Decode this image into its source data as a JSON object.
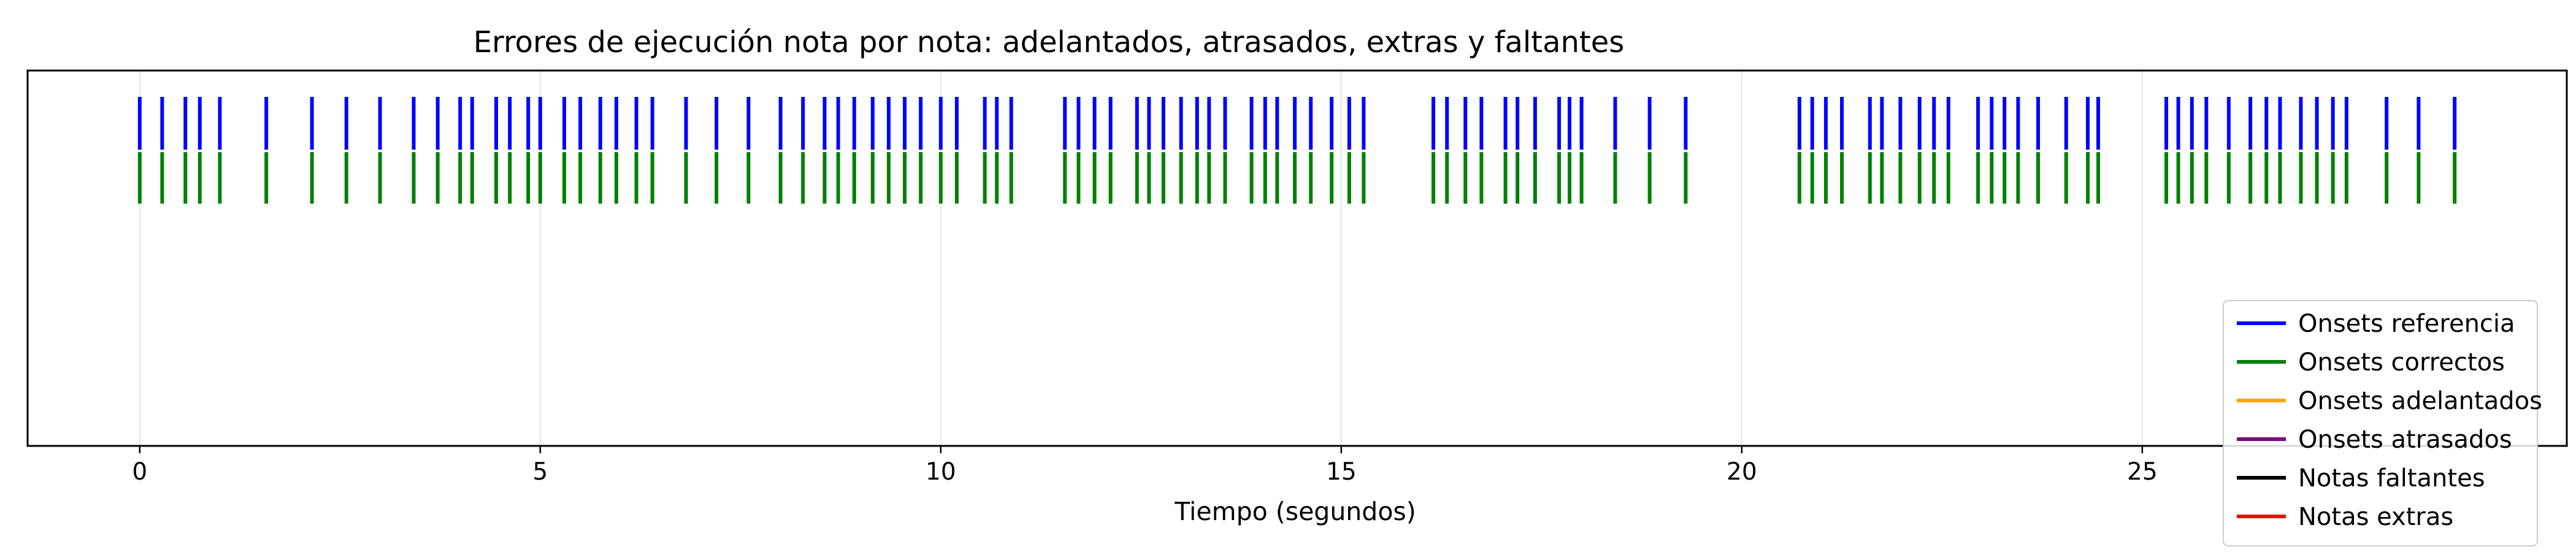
{
  "chart_data": {
    "type": "event-plot",
    "title": "Errores de ejecución nota por nota: adelantados, atrasados, extras y faltantes",
    "xlabel": "Tiempo (segundos)",
    "ylabel": "",
    "xlim": [
      -1.4,
      30.3
    ],
    "x_ticks": [
      0,
      5,
      10,
      15,
      20,
      25
    ],
    "x_tick_labels": [
      "0",
      "5",
      "10",
      "15",
      "20",
      "25"
    ],
    "grid": "vertical",
    "legend_position": "lower-right",
    "series": [
      {
        "name": "Onsets referencia",
        "color": "#0000ff",
        "onsets": [
          0.0,
          0.28,
          0.57,
          0.75,
          1.0,
          1.58,
          2.15,
          2.58,
          3.0,
          3.42,
          3.72,
          4.0,
          4.15,
          4.45,
          4.62,
          4.85,
          5.0,
          5.3,
          5.5,
          5.75,
          5.95,
          6.2,
          6.4,
          6.82,
          7.2,
          7.6,
          8.0,
          8.28,
          8.55,
          8.72,
          8.92,
          9.15,
          9.35,
          9.55,
          9.75,
          10.0,
          10.2,
          10.55,
          10.7,
          10.88,
          11.55,
          11.72,
          11.92,
          12.12,
          12.45,
          12.6,
          12.78,
          13.0,
          13.2,
          13.35,
          13.55,
          13.88,
          14.05,
          14.2,
          14.42,
          14.62,
          14.88,
          15.1,
          15.28,
          16.15,
          16.32,
          16.55,
          16.75,
          17.05,
          17.2,
          17.42,
          17.72,
          17.85,
          18.0,
          18.42,
          18.85,
          19.3,
          20.72,
          20.88,
          21.05,
          21.25,
          21.6,
          21.75,
          21.98,
          22.22,
          22.4,
          22.58,
          22.95,
          23.12,
          23.28,
          23.45,
          23.7,
          24.05,
          24.32,
          24.45,
          25.3,
          25.45,
          25.62,
          25.8,
          26.08,
          26.35,
          26.55,
          26.72,
          26.98,
          27.18,
          27.38,
          27.55,
          28.05,
          28.45,
          28.9
        ]
      },
      {
        "name": "Onsets correctos",
        "color": "#008000",
        "onsets": [
          0.0,
          0.28,
          0.57,
          0.75,
          1.0,
          1.58,
          2.15,
          2.58,
          3.0,
          3.42,
          3.72,
          4.0,
          4.15,
          4.45,
          4.62,
          4.85,
          5.0,
          5.3,
          5.5,
          5.75,
          5.95,
          6.2,
          6.4,
          6.82,
          7.2,
          7.6,
          8.0,
          8.28,
          8.55,
          8.72,
          8.92,
          9.15,
          9.35,
          9.55,
          9.75,
          10.0,
          10.2,
          10.55,
          10.7,
          10.88,
          11.55,
          11.72,
          11.92,
          12.12,
          12.45,
          12.6,
          12.78,
          13.0,
          13.2,
          13.35,
          13.55,
          13.88,
          14.05,
          14.2,
          14.42,
          14.62,
          14.88,
          15.1,
          15.28,
          16.15,
          16.32,
          16.55,
          16.75,
          17.05,
          17.2,
          17.42,
          17.72,
          17.85,
          18.0,
          18.42,
          18.85,
          19.3,
          20.72,
          20.88,
          21.05,
          21.25,
          21.6,
          21.75,
          21.98,
          22.22,
          22.4,
          22.58,
          22.95,
          23.12,
          23.28,
          23.45,
          23.7,
          24.05,
          24.32,
          24.45,
          25.3,
          25.45,
          25.62,
          25.8,
          26.08,
          26.35,
          26.55,
          26.72,
          26.98,
          27.18,
          27.38,
          27.55,
          28.05,
          28.45,
          28.9
        ]
      },
      {
        "name": "Onsets adelantados",
        "color": "#ffa500",
        "onsets": []
      },
      {
        "name": "Onsets atrasados",
        "color": "#800080",
        "onsets": []
      },
      {
        "name": "Notas faltantes",
        "color": "#000000",
        "onsets": []
      },
      {
        "name": "Notas extras",
        "color": "#ff0000",
        "onsets": []
      }
    ]
  }
}
